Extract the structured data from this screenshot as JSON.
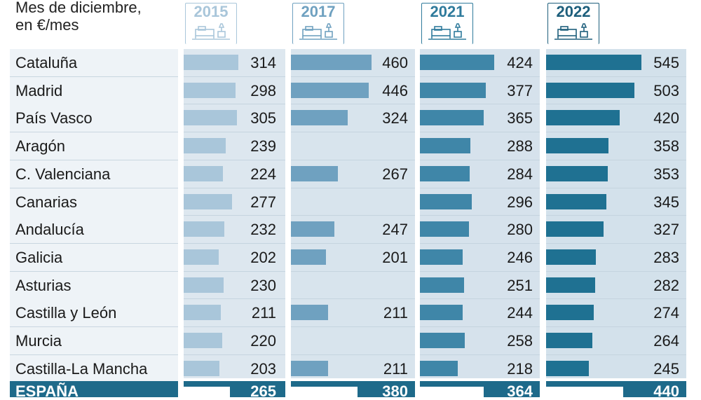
{
  "subtitle": {
    "line1": "Mes de diciembre,",
    "line2": "en €/mes"
  },
  "colors": {
    "label_bg": "#eef3f7",
    "col_bg": [
      "#dde7ef",
      "#d8e4ed",
      "#d6e2ec",
      "#d3e1eb"
    ],
    "bar": [
      "#a9c6da",
      "#6fa1c0",
      "#3f86a8",
      "#1f7192"
    ],
    "head": [
      "#a9c6da",
      "#6fa1c0",
      "#2f7b9c",
      "#1e5f7c"
    ],
    "total_bg": "#1e6a8a"
  },
  "chart_data": {
    "type": "bar",
    "title": "",
    "subtitle": "Mes de diciembre, en €/mes",
    "categories": [
      "Cataluña",
      "Madrid",
      "País Vasco",
      "Aragón",
      "C. Valenciana",
      "Canarias",
      "Andalucía",
      "Galicia",
      "Asturias",
      "Castilla y León",
      "Murcia",
      "Castilla-La Mancha"
    ],
    "series": [
      {
        "name": "2015",
        "values": [
          314,
          298,
          305,
          239,
          224,
          277,
          232,
          202,
          230,
          211,
          220,
          203
        ]
      },
      {
        "name": "2017",
        "values": [
          460,
          446,
          324,
          null,
          267,
          null,
          247,
          201,
          null,
          211,
          null,
          211
        ]
      },
      {
        "name": "2021",
        "values": [
          424,
          377,
          365,
          288,
          284,
          296,
          280,
          246,
          251,
          244,
          258,
          218
        ]
      },
      {
        "name": "2022",
        "values": [
          545,
          503,
          420,
          358,
          353,
          345,
          327,
          283,
          282,
          274,
          264,
          245
        ]
      }
    ],
    "total": {
      "label": "ESPAÑA",
      "values": [
        265,
        380,
        364,
        440
      ]
    },
    "ylim": [
      0,
      545
    ]
  }
}
